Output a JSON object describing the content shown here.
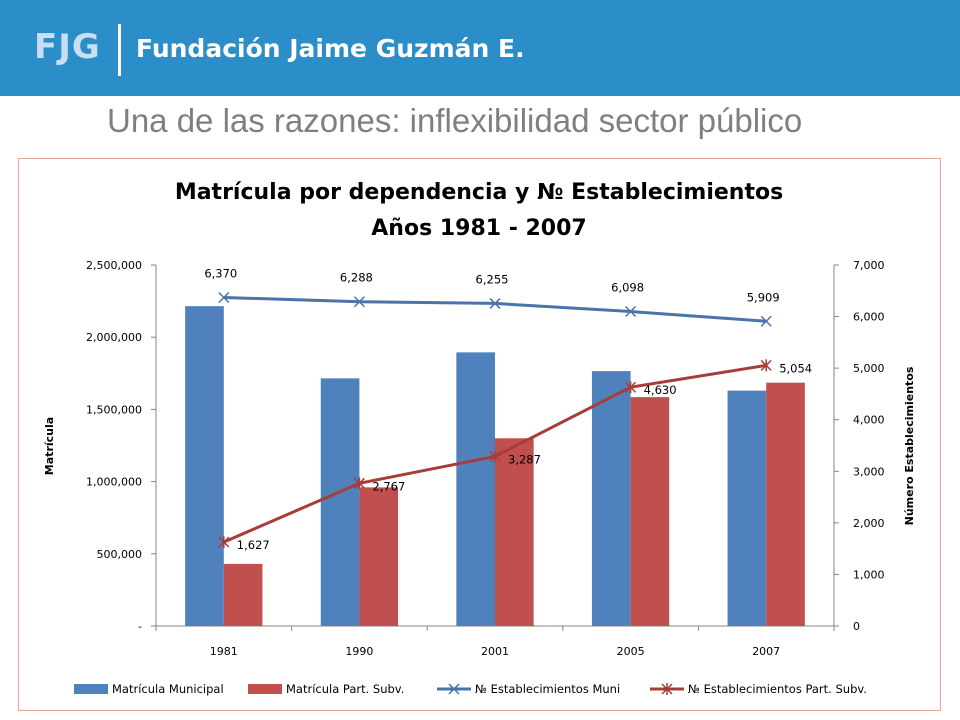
{
  "header": {
    "logo": "FJG",
    "org": "Fundación Jaime Guzmán E."
  },
  "slide_title": "Una de las razones: inflexibilidad sector público",
  "chart_data": {
    "type": "bar",
    "title": "Matrícula por dependencia y  № Establecimientos",
    "subtitle": "Años 1981 - 2007",
    "categories": [
      "1981",
      "1990",
      "2001",
      "2005",
      "2007"
    ],
    "y_label": "Matrícula",
    "y2_label": "Número Establecimientos",
    "ylim": [
      0,
      2500000
    ],
    "y2lim": [
      0,
      7000
    ],
    "y_ticks": [
      "-",
      "500,000",
      "1,000,000",
      "1,500,000",
      "2,000,000",
      "2,500,000"
    ],
    "y2_ticks": [
      "0",
      "1,000",
      "2,000",
      "3,000",
      "4,000",
      "5,000",
      "6,000",
      "7,000"
    ],
    "series": [
      {
        "name": "Matrícula Municipal",
        "kind": "bar",
        "color": "#4f81bd",
        "values": [
          2215000,
          1715000,
          1895000,
          1765000,
          1630000
        ]
      },
      {
        "name": "Matrícula Part. Subv.",
        "kind": "bar",
        "color": "#c0504d",
        "values": [
          430000,
          960000,
          1300000,
          1585000,
          1685000
        ]
      },
      {
        "name": "№ Establecimientos Muni",
        "kind": "line",
        "axis": "right",
        "color": "#4a73a8",
        "marker": "x",
        "values": [
          6370,
          6288,
          6255,
          6098,
          5909
        ],
        "labels": [
          "6,370",
          "6,288",
          "6,255",
          "6,098",
          "5,909"
        ]
      },
      {
        "name": "№ Establecimientos Part. Subv.",
        "kind": "line",
        "axis": "right",
        "color": "#a83c38",
        "marker": "star",
        "values": [
          1627,
          2767,
          3287,
          4630,
          5054
        ],
        "labels": [
          "1,627",
          "2,767",
          "3,287",
          "4,630",
          "5,054"
        ]
      }
    ],
    "legend_position": "bottom",
    "grid": false
  }
}
